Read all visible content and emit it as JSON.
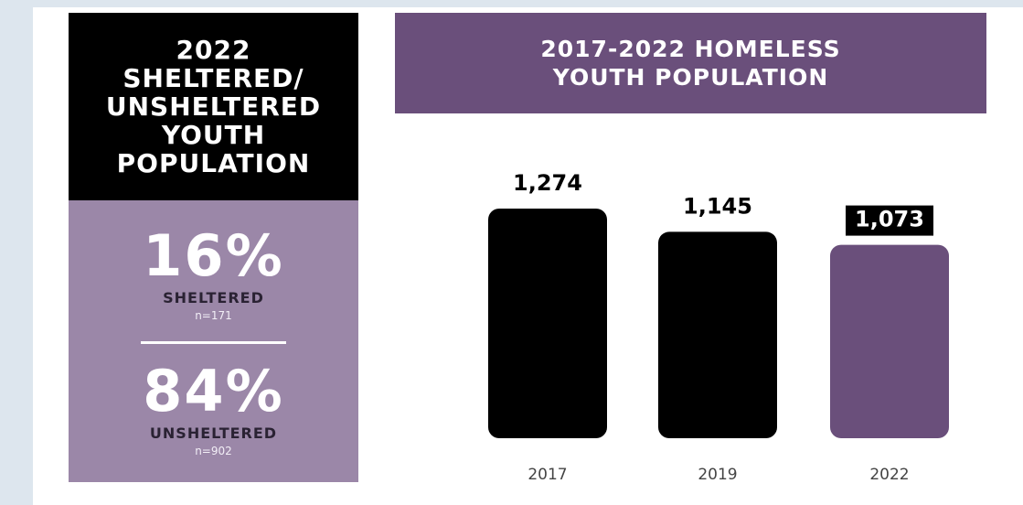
{
  "left_panel": {
    "title": "2022\nSHELTERED/\nUNSHELTERED\nYOUTH\nPOPULATION",
    "items": [
      {
        "percent": "16%",
        "label": "SHELTERED",
        "n": "n=171"
      },
      {
        "percent": "84%",
        "label": "UNSHELTERED",
        "n": "n=902"
      }
    ]
  },
  "colors": {
    "black": "#000000",
    "purple_dark": "#6a4f7b",
    "purple_light": "#9b87a8"
  },
  "chart_data": {
    "type": "bar",
    "title": "2017-2022 HOMELESS\nYOUTH POPULATION",
    "categories": [
      "2017",
      "2019",
      "2022"
    ],
    "values": [
      1274,
      1145,
      1073
    ],
    "value_labels": [
      "1,274",
      "1,145",
      "1,073"
    ],
    "bar_colors": [
      "#000000",
      "#000000",
      "#6a4f7b"
    ],
    "highlighted_label_index": 2,
    "ylim": [
      0,
      1274
    ],
    "grid": false,
    "xlabel": "",
    "ylabel": ""
  }
}
